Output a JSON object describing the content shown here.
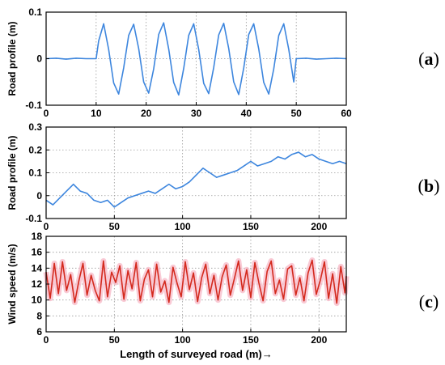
{
  "chart_data": [
    {
      "type": "line",
      "id": "a",
      "panel_label": {
        "open": "(",
        "letter": "a",
        "close": ")"
      },
      "ylabel": "Road profile (m)",
      "xlabel": "",
      "xlim": [
        0,
        60
      ],
      "ylim": [
        -0.1,
        0.1
      ],
      "xticks": [
        0,
        10,
        20,
        30,
        40,
        50,
        60
      ],
      "yticks": [
        -0.1,
        0,
        0.1
      ],
      "xtick_labels": [
        "0",
        "10",
        "20",
        "30",
        "40",
        "50",
        "60"
      ],
      "ytick_labels": [
        "-0.1",
        "0",
        "0.1"
      ],
      "grid": true,
      "series": [
        {
          "color": "#3d86de",
          "x": [
            0,
            2,
            4,
            6,
            8,
            10,
            10.5,
            11.5,
            12.5,
            13.5,
            14.5,
            15.5,
            16.5,
            17.5,
            18.5,
            19.5,
            20.5,
            21.5,
            22.5,
            23.5,
            24.5,
            25.5,
            26.5,
            27.5,
            28.5,
            29.5,
            30.5,
            31.5,
            32.5,
            33.5,
            34.5,
            35.5,
            36.5,
            37.5,
            38.5,
            39.5,
            40.5,
            41.5,
            42.5,
            43.5,
            44.5,
            45.5,
            46.5,
            47.5,
            48.5,
            49.5,
            50,
            52,
            54,
            56,
            58,
            60
          ],
          "y": [
            0.0,
            0.001,
            -0.001,
            0.001,
            0.0,
            0.0,
            0.038,
            0.075,
            0.02,
            -0.052,
            -0.076,
            -0.02,
            0.05,
            0.074,
            0.022,
            -0.05,
            -0.074,
            -0.022,
            0.052,
            0.077,
            0.021,
            -0.051,
            -0.078,
            -0.021,
            0.05,
            0.075,
            0.02,
            -0.053,
            -0.075,
            -0.019,
            0.051,
            0.076,
            0.022,
            -0.05,
            -0.077,
            -0.02,
            0.052,
            0.075,
            0.021,
            -0.051,
            -0.076,
            -0.022,
            0.05,
            0.075,
            0.02,
            -0.05,
            0.0,
            0.001,
            -0.001,
            0.0,
            0.001,
            0.0
          ]
        }
      ]
    },
    {
      "type": "line",
      "id": "b",
      "panel_label": {
        "open": "(",
        "letter": "b",
        "close": ")"
      },
      "ylabel": "Road profile (m)",
      "xlabel": "",
      "xlim": [
        0,
        220
      ],
      "ylim": [
        -0.1,
        0.3
      ],
      "xticks": [
        0,
        50,
        100,
        150,
        200
      ],
      "yticks": [
        -0.1,
        0,
        0.1,
        0.2,
        0.3
      ],
      "xtick_labels": [
        "0",
        "50",
        "100",
        "150",
        "200"
      ],
      "ytick_labels": [
        "-0.1",
        "0",
        "0.1",
        "0.2",
        "0.3"
      ],
      "grid": true,
      "series": [
        {
          "color": "#3d86de",
          "x": [
            0,
            5,
            10,
            15,
            20,
            25,
            30,
            35,
            40,
            45,
            50,
            55,
            60,
            65,
            70,
            75,
            80,
            85,
            90,
            95,
            100,
            105,
            110,
            115,
            120,
            125,
            130,
            135,
            140,
            145,
            150,
            155,
            160,
            165,
            170,
            175,
            180,
            185,
            190,
            195,
            200,
            205,
            210,
            215,
            220
          ],
          "y": [
            -0.02,
            -0.04,
            -0.01,
            0.02,
            0.05,
            0.02,
            0.01,
            -0.02,
            -0.03,
            -0.02,
            -0.05,
            -0.03,
            -0.01,
            0.0,
            0.01,
            0.02,
            0.01,
            0.03,
            0.05,
            0.03,
            0.04,
            0.06,
            0.09,
            0.12,
            0.1,
            0.08,
            0.09,
            0.1,
            0.11,
            0.13,
            0.15,
            0.13,
            0.14,
            0.15,
            0.17,
            0.16,
            0.18,
            0.19,
            0.17,
            0.18,
            0.16,
            0.15,
            0.14,
            0.15,
            0.14
          ]
        }
      ]
    },
    {
      "type": "line",
      "id": "c",
      "panel_label": {
        "open": "(",
        "letter": "c",
        "close": ")"
      },
      "ylabel": "Wind speed (m/s)",
      "xlabel": "Length of surveyed road (m)→",
      "xlim": [
        0,
        220
      ],
      "ylim": [
        6,
        18
      ],
      "xticks": [
        0,
        50,
        100,
        150,
        200
      ],
      "yticks": [
        6,
        8,
        10,
        12,
        14,
        16,
        18
      ],
      "xtick_labels": [
        "0",
        "50",
        "100",
        "150",
        "200"
      ],
      "ytick_labels": [
        "6",
        "8",
        "10",
        "12",
        "14",
        "16",
        "18"
      ],
      "grid": true,
      "series": [
        {
          "color": "#d42a1e",
          "band_color": "#f7b3c3",
          "x": [
            0,
            3,
            6,
            9,
            12,
            15,
            18,
            21,
            24,
            27,
            30,
            33,
            36,
            39,
            42,
            45,
            48,
            51,
            54,
            57,
            60,
            63,
            66,
            69,
            72,
            75,
            78,
            81,
            84,
            87,
            90,
            93,
            96,
            99,
            102,
            105,
            108,
            111,
            114,
            117,
            120,
            123,
            126,
            129,
            132,
            135,
            138,
            141,
            144,
            147,
            150,
            153,
            156,
            159,
            162,
            165,
            168,
            171,
            174,
            177,
            180,
            183,
            186,
            189,
            192,
            195,
            198,
            201,
            204,
            207,
            210,
            213,
            216,
            219,
            220
          ],
          "y": [
            13.5,
            10.2,
            14.6,
            10.8,
            14.8,
            11.2,
            13.2,
            9.7,
            12.4,
            14.6,
            10.6,
            13.1,
            11.2,
            9.9,
            14.9,
            10.4,
            13.5,
            12.2,
            14.3,
            10.1,
            13.7,
            11.4,
            14.7,
            9.9,
            12.6,
            13.8,
            10.4,
            14.5,
            11.0,
            12.4,
            9.7,
            14.1,
            12.1,
            10.4,
            14.8,
            11.3,
            13.4,
            9.8,
            12.8,
            14.5,
            10.8,
            13.1,
            10.0,
            12.9,
            14.4,
            10.6,
            12.7,
            14.9,
            11.2,
            13.8,
            10.3,
            14.7,
            12.1,
            9.9,
            13.6,
            14.9,
            10.8,
            12.5,
            10.1,
            13.9,
            14.3,
            10.6,
            12.8,
            9.9,
            13.4,
            15.0,
            10.7,
            12.5,
            14.8,
            10.2,
            13.3,
            9.6,
            14.2,
            10.9,
            13.0
          ]
        }
      ]
    }
  ]
}
